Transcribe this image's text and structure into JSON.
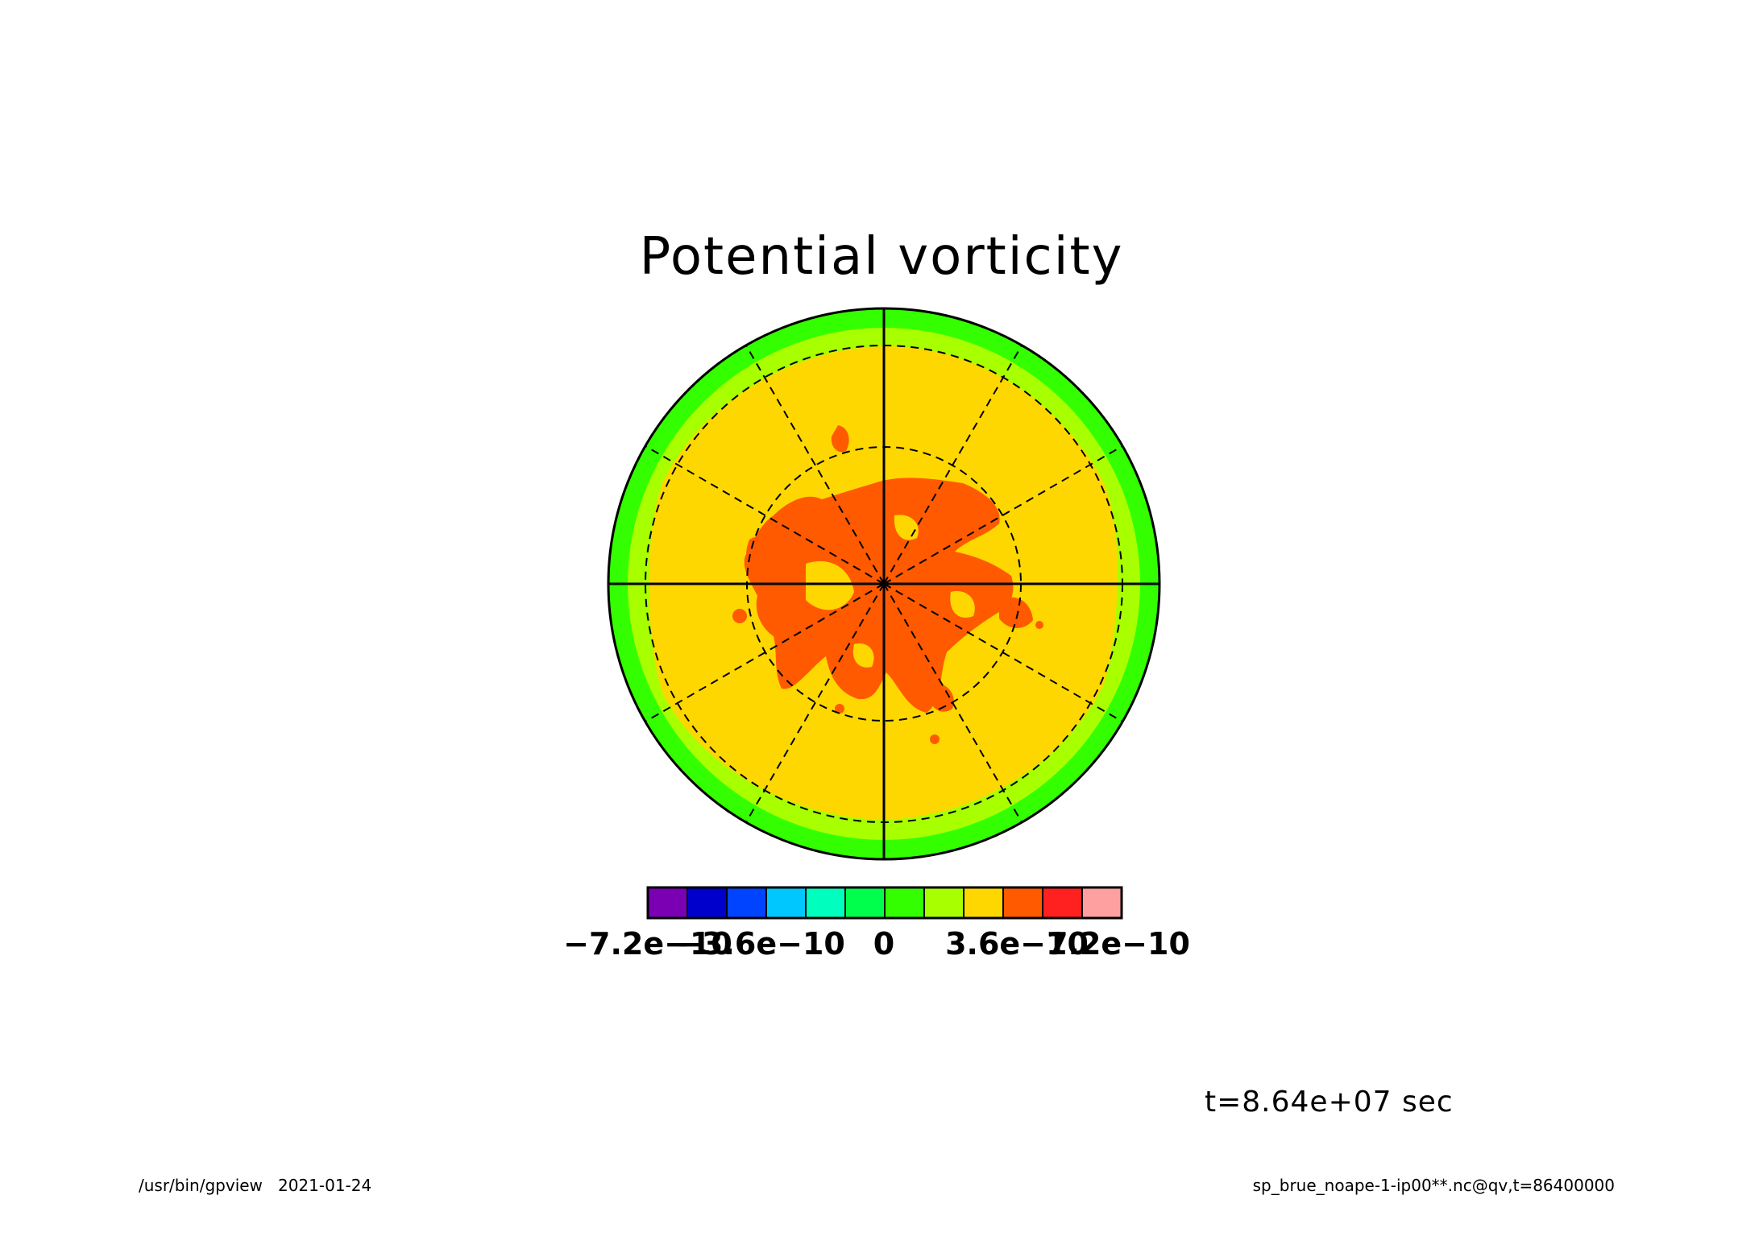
{
  "chart_data": {
    "type": "heatmap",
    "projection": "polar stereographic",
    "title": "Potential vorticity",
    "colorbar": {
      "levels": [
        -7.2e-10,
        -6e-10,
        -4.8e-10,
        -3.6e-10,
        -2.4e-10,
        -1.2e-10,
        0,
        1.2e-10,
        2.4e-10,
        3.6e-10,
        4.8e-10,
        6e-10,
        7.2e-10
      ],
      "colors": [
        "#7b00b4",
        "#0000cd",
        "#0044ff",
        "#00c8ff",
        "#00ffbf",
        "#00ff4c",
        "#33ff00",
        "#a8ff00",
        "#ffd700",
        "#ff5a00",
        "#ff2020",
        "#ffa0a0"
      ],
      "tick_labels": [
        "−7.2e−10",
        "−3.6e−10",
        "0",
        "3.6e−10",
        "7.2e−10"
      ]
    },
    "field_bands": [
      {
        "band": "outer rim",
        "color": "#33ff00"
      },
      {
        "band": "mid-latitude ring",
        "color": "#a8ff00"
      },
      {
        "band": "interior",
        "color": "#ffd700"
      },
      {
        "band": "polar core",
        "color": "#ff5a00"
      }
    ],
    "time_label": "t=8.64e+07 sec"
  },
  "footer": {
    "program": "/usr/bin/gpview",
    "date": "2021-01-24",
    "source": "sp_brue_noape-1-ip00**.nc@qv,t=86400000"
  }
}
